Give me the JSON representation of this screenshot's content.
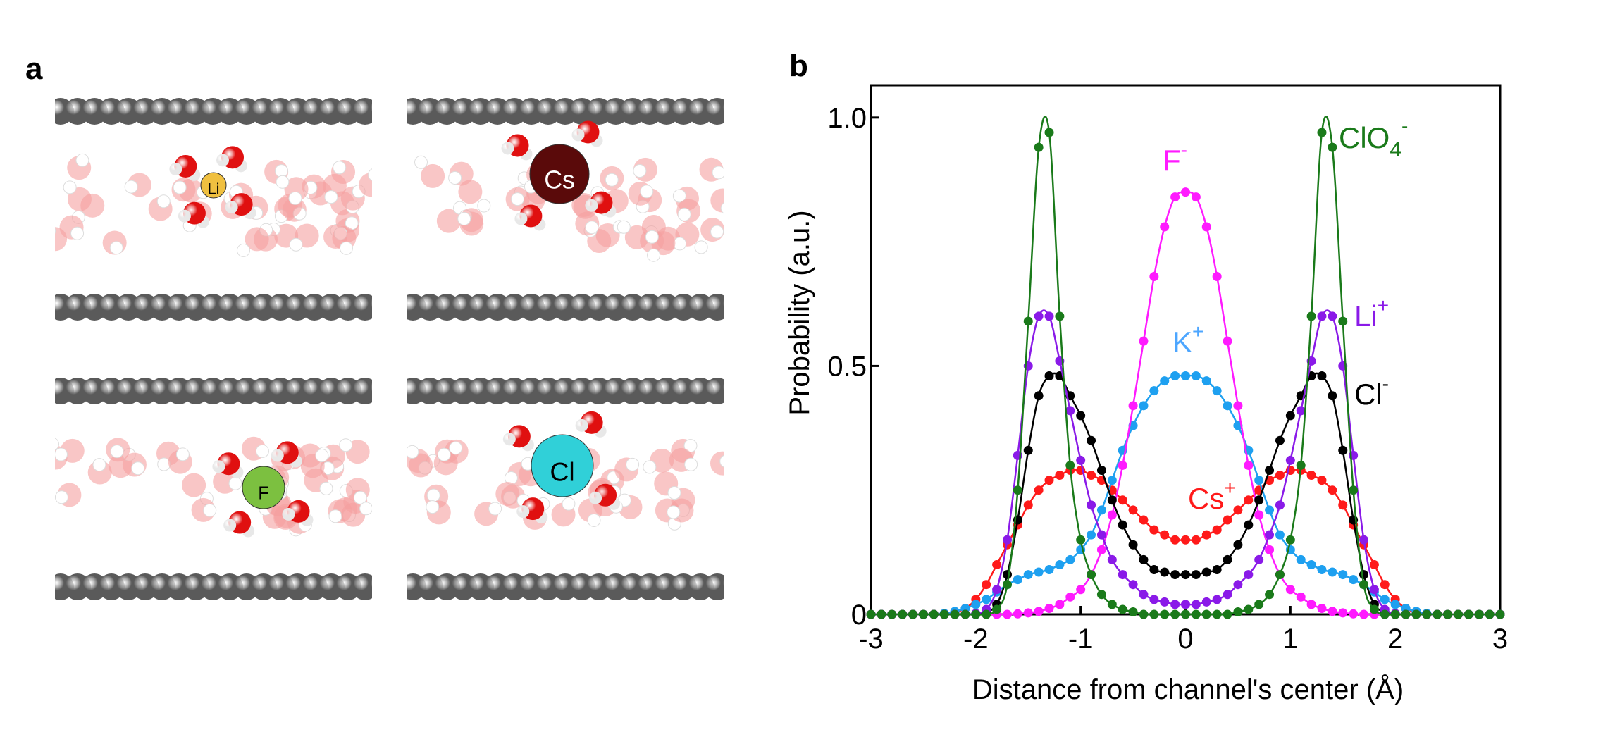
{
  "panel_a": {
    "label": "a",
    "snapshots": [
      {
        "ion": "Li",
        "ion_color": "#f0c040"
      },
      {
        "ion": "Cs",
        "ion_color": "#5a0a0a"
      },
      {
        "ion": "F",
        "ion_color": "#7cc040"
      },
      {
        "ion": "Cl",
        "ion_color": "#30d0d8"
      }
    ]
  },
  "chart_data": {
    "panel_label": "b",
    "type": "line",
    "xlabel": "Distance from channel's center (Å)",
    "ylabel": "Probability (a.u.)",
    "xlim": [
      -3,
      3
    ],
    "ylim": [
      0,
      1.065
    ],
    "xticks": [
      "-3",
      "-2",
      "-1",
      "0",
      "1",
      "2",
      "3"
    ],
    "yticks": [
      {
        "value": 0,
        "label": "0"
      },
      {
        "value": 0.5,
        "label": "0.5"
      },
      {
        "value": 1.0,
        "label": "1.0"
      }
    ],
    "grid": false,
    "x": [
      -3.0,
      -2.9,
      -2.8,
      -2.7,
      -2.6,
      -2.5,
      -2.4,
      -2.3,
      -2.2,
      -2.1,
      -2.0,
      -1.9,
      -1.8,
      -1.7,
      -1.6,
      -1.5,
      -1.4,
      -1.3,
      -1.2,
      -1.1,
      -1.0,
      -0.9,
      -0.8,
      -0.7,
      -0.6,
      -0.5,
      -0.4,
      -0.3,
      -0.2,
      -0.1,
      0.0,
      0.1,
      0.2,
      0.3,
      0.4,
      0.5,
      0.6,
      0.7,
      0.8,
      0.9,
      1.0,
      1.1,
      1.2,
      1.3,
      1.4,
      1.5,
      1.6,
      1.7,
      1.8,
      1.9,
      2.0,
      2.1,
      2.2,
      2.3,
      2.4,
      2.5,
      2.6,
      2.7,
      2.8,
      2.9,
      3.0
    ],
    "series": [
      {
        "name": "Cs",
        "charge": "+",
        "color": "#ff1a1a",
        "values": [
          0,
          0,
          0,
          0,
          0,
          0,
          0,
          0,
          0.004,
          0.012,
          0.03,
          0.06,
          0.1,
          0.14,
          0.18,
          0.22,
          0.25,
          0.27,
          0.28,
          0.29,
          0.29,
          0.28,
          0.27,
          0.25,
          0.23,
          0.21,
          0.19,
          0.17,
          0.16,
          0.15,
          0.15,
          0.15,
          0.16,
          0.17,
          0.19,
          0.21,
          0.23,
          0.25,
          0.27,
          0.28,
          0.29,
          0.29,
          0.28,
          0.27,
          0.25,
          0.22,
          0.18,
          0.14,
          0.1,
          0.06,
          0.03,
          0.012,
          0.004,
          0,
          0,
          0,
          0,
          0,
          0,
          0,
          0
        ]
      },
      {
        "name": "K",
        "charge": "+",
        "color": "#1ea0f0",
        "values": [
          0,
          0,
          0,
          0,
          0,
          0,
          0,
          0.002,
          0.006,
          0.012,
          0.02,
          0.03,
          0.045,
          0.06,
          0.07,
          0.08,
          0.085,
          0.09,
          0.1,
          0.11,
          0.13,
          0.16,
          0.21,
          0.27,
          0.33,
          0.38,
          0.42,
          0.45,
          0.47,
          0.48,
          0.48,
          0.48,
          0.47,
          0.45,
          0.42,
          0.38,
          0.33,
          0.27,
          0.21,
          0.16,
          0.13,
          0.11,
          0.1,
          0.09,
          0.085,
          0.08,
          0.07,
          0.06,
          0.045,
          0.03,
          0.02,
          0.012,
          0.006,
          0.002,
          0,
          0,
          0,
          0,
          0,
          0,
          0
        ]
      },
      {
        "name": "F",
        "charge": "-",
        "color": "#ff1aff",
        "values": [
          0,
          0,
          0,
          0,
          0,
          0,
          0,
          0,
          0,
          0,
          0,
          0,
          0,
          0,
          0.001,
          0.003,
          0.006,
          0.012,
          0.02,
          0.035,
          0.05,
          0.08,
          0.13,
          0.2,
          0.3,
          0.42,
          0.55,
          0.68,
          0.78,
          0.84,
          0.85,
          0.84,
          0.78,
          0.68,
          0.55,
          0.42,
          0.3,
          0.2,
          0.13,
          0.08,
          0.05,
          0.035,
          0.02,
          0.012,
          0.006,
          0.003,
          0.001,
          0,
          0,
          0,
          0,
          0,
          0,
          0,
          0,
          0,
          0,
          0,
          0,
          0,
          0
        ]
      },
      {
        "name": "Cl",
        "charge": "-",
        "color": "#000000",
        "values": [
          0,
          0,
          0,
          0,
          0,
          0,
          0,
          0,
          0,
          0,
          0,
          0.005,
          0.02,
          0.08,
          0.19,
          0.33,
          0.44,
          0.48,
          0.48,
          0.44,
          0.4,
          0.35,
          0.29,
          0.23,
          0.18,
          0.14,
          0.11,
          0.09,
          0.085,
          0.08,
          0.08,
          0.08,
          0.085,
          0.09,
          0.11,
          0.14,
          0.18,
          0.23,
          0.29,
          0.35,
          0.4,
          0.44,
          0.48,
          0.48,
          0.44,
          0.33,
          0.19,
          0.08,
          0.02,
          0.005,
          0,
          0,
          0,
          0,
          0,
          0,
          0,
          0,
          0,
          0,
          0
        ]
      },
      {
        "name": "Li",
        "charge": "+",
        "color": "#8a1ae8",
        "values": [
          0,
          0,
          0,
          0,
          0,
          0,
          0,
          0,
          0,
          0,
          0.002,
          0.01,
          0.05,
          0.15,
          0.32,
          0.5,
          0.6,
          0.6,
          0.51,
          0.41,
          0.31,
          0.22,
          0.16,
          0.11,
          0.08,
          0.06,
          0.04,
          0.03,
          0.025,
          0.02,
          0.02,
          0.02,
          0.025,
          0.03,
          0.04,
          0.06,
          0.08,
          0.11,
          0.16,
          0.22,
          0.31,
          0.41,
          0.51,
          0.6,
          0.6,
          0.5,
          0.32,
          0.15,
          0.05,
          0.01,
          0.002,
          0,
          0,
          0,
          0,
          0,
          0,
          0,
          0,
          0,
          0
        ]
      },
      {
        "name": "ClO",
        "subscript": "4",
        "charge": "-",
        "color": "#1a7a1a",
        "values": [
          0,
          0,
          0,
          0,
          0,
          0,
          0,
          0,
          0,
          0,
          0,
          0,
          0.01,
          0.06,
          0.25,
          0.59,
          0.94,
          0.97,
          0.6,
          0.3,
          0.15,
          0.08,
          0.04,
          0.02,
          0.01,
          0.005,
          0,
          0,
          0,
          0,
          0,
          0,
          0,
          0,
          0,
          0.005,
          0.01,
          0.02,
          0.04,
          0.08,
          0.15,
          0.3,
          0.6,
          0.97,
          0.94,
          0.59,
          0.25,
          0.06,
          0.01,
          0,
          0,
          0,
          0,
          0,
          0,
          0,
          0,
          0,
          0,
          0,
          0
        ]
      }
    ]
  }
}
